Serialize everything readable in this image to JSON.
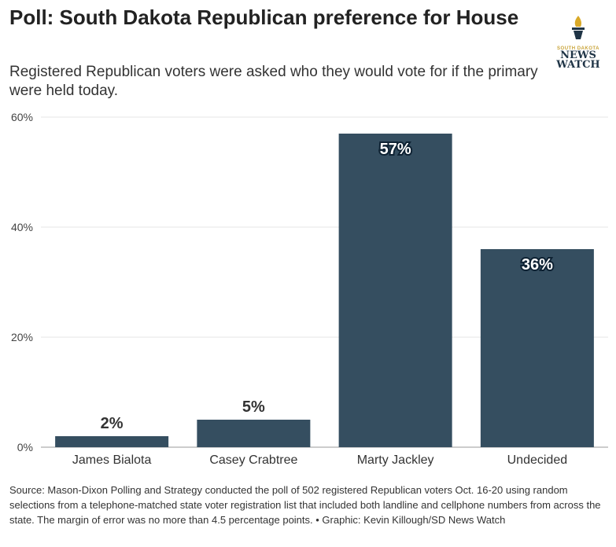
{
  "title": "Poll: South Dakota Republican preference for House",
  "subtitle": "Registered Republican voters were asked who they would vote for if the primary were held today.",
  "logo": {
    "top": "SOUTH DAKOTA",
    "line1": "NEWS",
    "line2": "WATCH"
  },
  "source": "Source: Mason-Dixon Polling and Strategy conducted the poll of 502 registered Republican voters Oct. 16-20 using random selections from a telephone-matched state voter registration list that included both landline and cellphone numbers from across the state. The margin of error was no more than 4.5 percentage points. • Graphic: Kevin Killough/SD News Watch",
  "chart_data": {
    "type": "bar",
    "categories": [
      "James Bialota",
      "Casey Crabtree",
      "Marty Jackley",
      "Undecided"
    ],
    "values": [
      2,
      5,
      57,
      36
    ],
    "data_labels": [
      "2%",
      "5%",
      "57%",
      "36%"
    ],
    "yticks": [
      "0%",
      "20%",
      "40%",
      "60%"
    ],
    "ylim": [
      0,
      60
    ],
    "grid": true,
    "bar_color": "#354e60"
  }
}
